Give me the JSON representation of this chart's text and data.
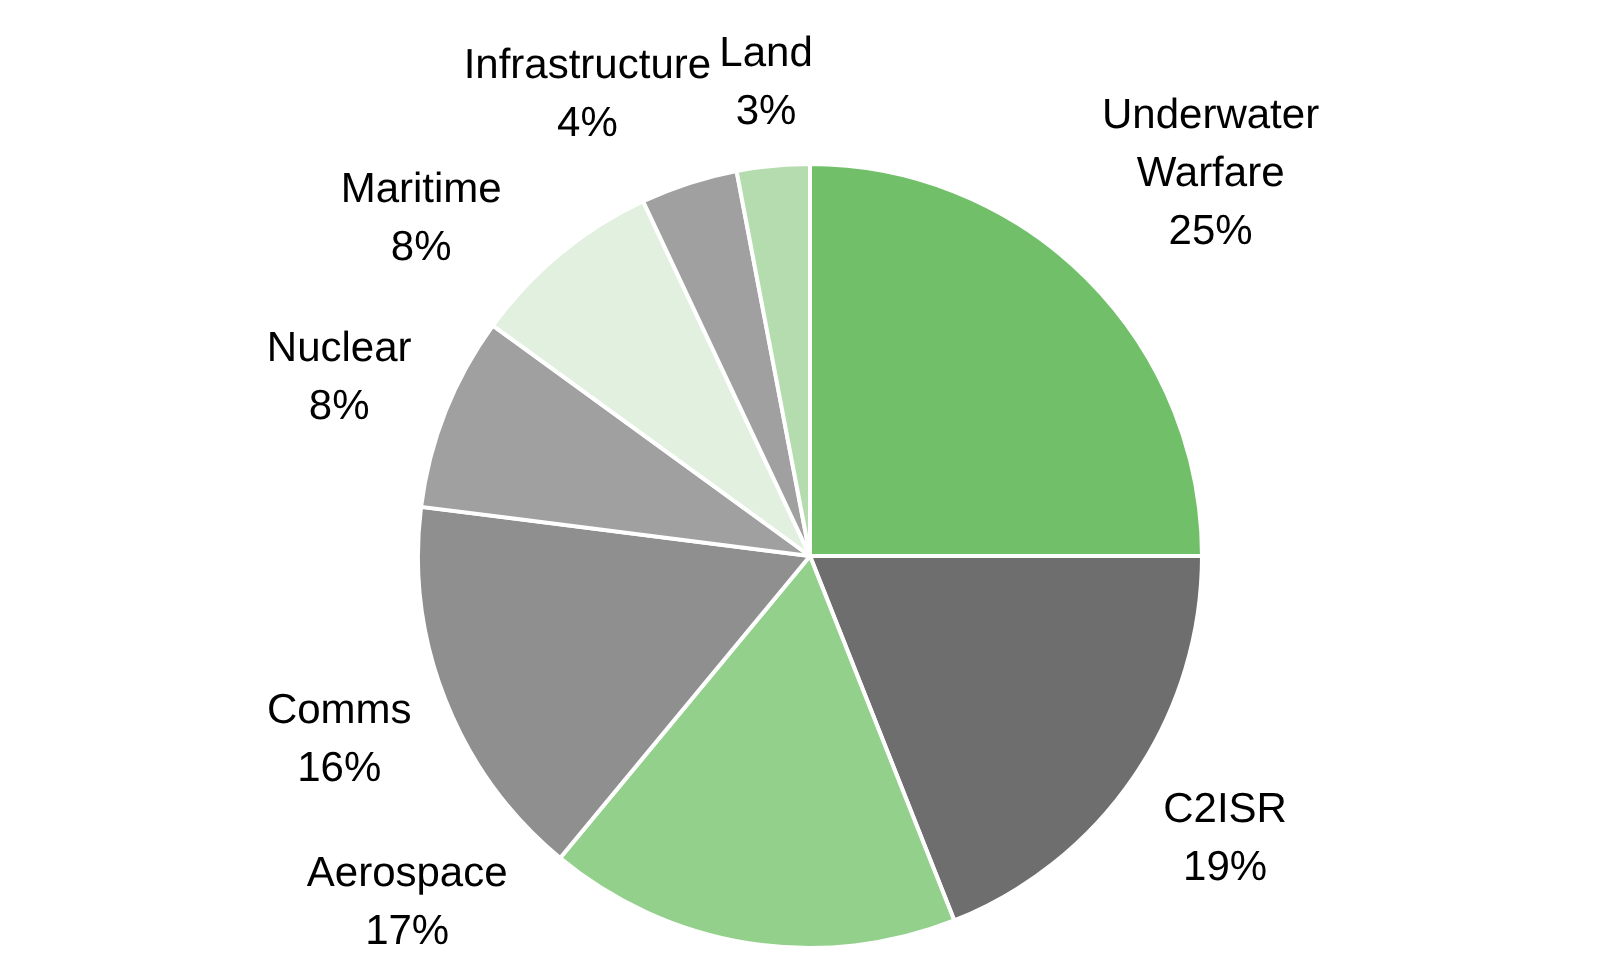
{
  "chart_data": {
    "type": "pie",
    "categories": [
      "Underwater Warfare",
      "C2ISR",
      "Aerospace",
      "Comms",
      "Nuclear",
      "Maritime",
      "Infrastructure",
      "Land"
    ],
    "values": [
      25,
      19,
      17,
      16,
      8,
      8,
      4,
      3
    ],
    "value_labels": [
      "25%",
      "19%",
      "17%",
      "16%",
      "8%",
      "8%",
      "4%",
      "3%"
    ],
    "colors": [
      "#72bf6a",
      "#6e6e6e",
      "#93d08b",
      "#8f8f8f",
      "#a0a0a0",
      "#e2f1df",
      "#a0a0a0",
      "#b4dcae"
    ]
  }
}
